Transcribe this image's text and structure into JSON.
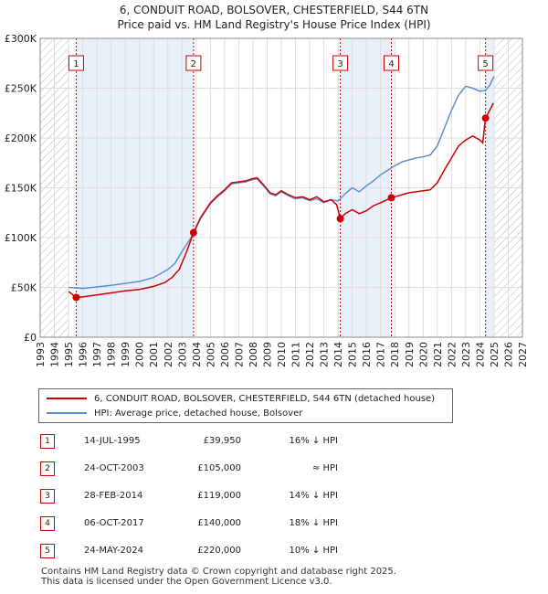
{
  "title_line1": "6, CONDUIT ROAD, BOLSOVER, CHESTERFIELD, S44 6TN",
  "title_line2": "Price paid vs. HM Land Registry's House Price Index (HPI)",
  "colors": {
    "red": "#cc0000",
    "blue": "#5b8fd1",
    "shade": "#eaf0fa",
    "grid": "#dddddd"
  },
  "legend": {
    "red_label": "6, CONDUIT ROAD, BOLSOVER, CHESTERFIELD, S44 6TN (detached house)",
    "blue_label": "HPI: Average price, detached house, Bolsover"
  },
  "transactions": [
    {
      "num": "1",
      "date": "14-JUL-1995",
      "price": "£39,950",
      "hpi": "16% ↓ HPI"
    },
    {
      "num": "2",
      "date": "24-OCT-2003",
      "price": "£105,000",
      "hpi": "≈ HPI"
    },
    {
      "num": "3",
      "date": "28-FEB-2014",
      "price": "£119,000",
      "hpi": "14% ↓ HPI"
    },
    {
      "num": "4",
      "date": "06-OCT-2017",
      "price": "£140,000",
      "hpi": "18% ↓ HPI"
    },
    {
      "num": "5",
      "date": "24-MAY-2024",
      "price": "£220,000",
      "hpi": "10% ↓ HPI"
    }
  ],
  "footer_line1": "Contains HM Land Registry data © Crown copyright and database right 2025.",
  "footer_line2": "This data is licensed under the Open Government Licence v3.0.",
  "chart_data": {
    "type": "line",
    "title": "6, CONDUIT ROAD, BOLSOVER, CHESTERFIELD, S44 6TN",
    "subtitle": "Price paid vs. HM Land Registry's House Price Index (HPI)",
    "xlabel": "",
    "ylabel": "",
    "xlim": [
      1993,
      2027
    ],
    "ylim": [
      0,
      300000
    ],
    "x_ticks": [
      1993,
      1994,
      1995,
      1996,
      1997,
      1998,
      1999,
      2000,
      2001,
      2002,
      2003,
      2004,
      2005,
      2006,
      2007,
      2008,
      2009,
      2010,
      2011,
      2012,
      2013,
      2014,
      2015,
      2016,
      2017,
      2018,
      2019,
      2020,
      2021,
      2022,
      2023,
      2024,
      2025,
      2026,
      2027
    ],
    "y_ticks": [
      0,
      50000,
      100000,
      150000,
      200000,
      250000,
      300000
    ],
    "y_tick_labels": [
      "£0",
      "£50K",
      "£100K",
      "£150K",
      "£200K",
      "£250K",
      "£300K"
    ],
    "hatched_before": 1995.0,
    "hatched_after": 2025.0,
    "shaded_ranges": [
      [
        1995.54,
        2003.81
      ],
      [
        2014.16,
        2017.76
      ],
      [
        2024.4,
        2025.0
      ]
    ],
    "series": [
      {
        "name": "6, CONDUIT ROAD, BOLSOVER, CHESTERFIELD, S44 6TN (detached house)",
        "color": "#cc0000",
        "points": [
          [
            1995.0,
            46000
          ],
          [
            1995.54,
            39950
          ],
          [
            1996.0,
            40500
          ],
          [
            1997.0,
            42500
          ],
          [
            1998.0,
            44500
          ],
          [
            1999.0,
            46500
          ],
          [
            2000.0,
            48000
          ],
          [
            2001.0,
            51000
          ],
          [
            2001.8,
            55000
          ],
          [
            2002.3,
            60000
          ],
          [
            2002.8,
            68000
          ],
          [
            2003.3,
            85000
          ],
          [
            2003.81,
            105000
          ],
          [
            2004.3,
            120000
          ],
          [
            2005.0,
            135000
          ],
          [
            2005.5,
            142000
          ],
          [
            2006.0,
            148000
          ],
          [
            2006.5,
            155000
          ],
          [
            2007.0,
            156000
          ],
          [
            2007.5,
            157000
          ],
          [
            2007.9,
            159000
          ],
          [
            2008.3,
            160000
          ],
          [
            2008.8,
            152000
          ],
          [
            2009.2,
            145000
          ],
          [
            2009.6,
            143000
          ],
          [
            2010.0,
            147000
          ],
          [
            2010.5,
            143000
          ],
          [
            2011.0,
            140000
          ],
          [
            2011.5,
            141000
          ],
          [
            2012.0,
            138000
          ],
          [
            2012.5,
            141000
          ],
          [
            2013.0,
            136000
          ],
          [
            2013.5,
            138000
          ],
          [
            2013.9,
            133000
          ],
          [
            2014.16,
            119000
          ],
          [
            2014.5,
            124000
          ],
          [
            2015.0,
            128000
          ],
          [
            2015.5,
            124000
          ],
          [
            2016.0,
            127000
          ],
          [
            2016.5,
            132000
          ],
          [
            2017.0,
            135000
          ],
          [
            2017.76,
            140000
          ],
          [
            2018.0,
            141000
          ],
          [
            2018.5,
            143000
          ],
          [
            2019.0,
            145000
          ],
          [
            2019.5,
            146000
          ],
          [
            2020.0,
            147000
          ],
          [
            2020.5,
            148000
          ],
          [
            2021.0,
            155000
          ],
          [
            2021.5,
            168000
          ],
          [
            2022.0,
            180000
          ],
          [
            2022.5,
            192000
          ],
          [
            2023.0,
            198000
          ],
          [
            2023.5,
            202000
          ],
          [
            2024.0,
            198000
          ],
          [
            2024.2,
            195000
          ],
          [
            2024.4,
            220000
          ],
          [
            2024.7,
            228000
          ],
          [
            2024.95,
            235000
          ]
        ]
      },
      {
        "name": "HPI: Average price, detached house, Bolsover",
        "color": "#5b8fd1",
        "points": [
          [
            1995.0,
            50000
          ],
          [
            1996.0,
            49000
          ],
          [
            1997.0,
            50500
          ],
          [
            1998.0,
            52000
          ],
          [
            1999.0,
            54000
          ],
          [
            2000.0,
            56000
          ],
          [
            2001.0,
            60000
          ],
          [
            2002.0,
            68000
          ],
          [
            2002.5,
            74000
          ],
          [
            2003.0,
            86000
          ],
          [
            2003.81,
            104000
          ],
          [
            2004.3,
            119000
          ],
          [
            2005.0,
            134000
          ],
          [
            2005.5,
            141000
          ],
          [
            2006.0,
            147000
          ],
          [
            2006.5,
            154000
          ],
          [
            2007.0,
            155000
          ],
          [
            2007.5,
            156000
          ],
          [
            2007.9,
            158000
          ],
          [
            2008.3,
            159000
          ],
          [
            2008.8,
            151000
          ],
          [
            2009.2,
            144000
          ],
          [
            2009.6,
            142000
          ],
          [
            2010.0,
            146000
          ],
          [
            2010.5,
            142000
          ],
          [
            2011.0,
            139000
          ],
          [
            2011.5,
            140000
          ],
          [
            2012.0,
            137000
          ],
          [
            2012.5,
            139000
          ],
          [
            2013.0,
            135000
          ],
          [
            2013.5,
            138000
          ],
          [
            2014.0,
            137000
          ],
          [
            2014.16,
            139000
          ],
          [
            2014.5,
            144000
          ],
          [
            2015.0,
            150000
          ],
          [
            2015.5,
            146000
          ],
          [
            2016.0,
            152000
          ],
          [
            2016.5,
            157000
          ],
          [
            2017.0,
            163000
          ],
          [
            2017.76,
            170000
          ],
          [
            2018.0,
            172000
          ],
          [
            2018.5,
            176000
          ],
          [
            2019.0,
            178000
          ],
          [
            2019.5,
            180000
          ],
          [
            2020.0,
            181000
          ],
          [
            2020.5,
            183000
          ],
          [
            2021.0,
            192000
          ],
          [
            2021.5,
            210000
          ],
          [
            2022.0,
            228000
          ],
          [
            2022.5,
            243000
          ],
          [
            2023.0,
            252000
          ],
          [
            2023.5,
            250000
          ],
          [
            2024.0,
            247000
          ],
          [
            2024.4,
            248000
          ],
          [
            2024.7,
            253000
          ],
          [
            2025.0,
            262000
          ]
        ]
      }
    ],
    "sales": [
      {
        "label": "1",
        "x": 1995.54,
        "y": 39950
      },
      {
        "label": "2",
        "x": 2003.81,
        "y": 105000
      },
      {
        "label": "3",
        "x": 2014.16,
        "y": 119000
      },
      {
        "label": "4",
        "x": 2017.76,
        "y": 140000
      },
      {
        "label": "5",
        "x": 2024.4,
        "y": 220000
      }
    ]
  }
}
